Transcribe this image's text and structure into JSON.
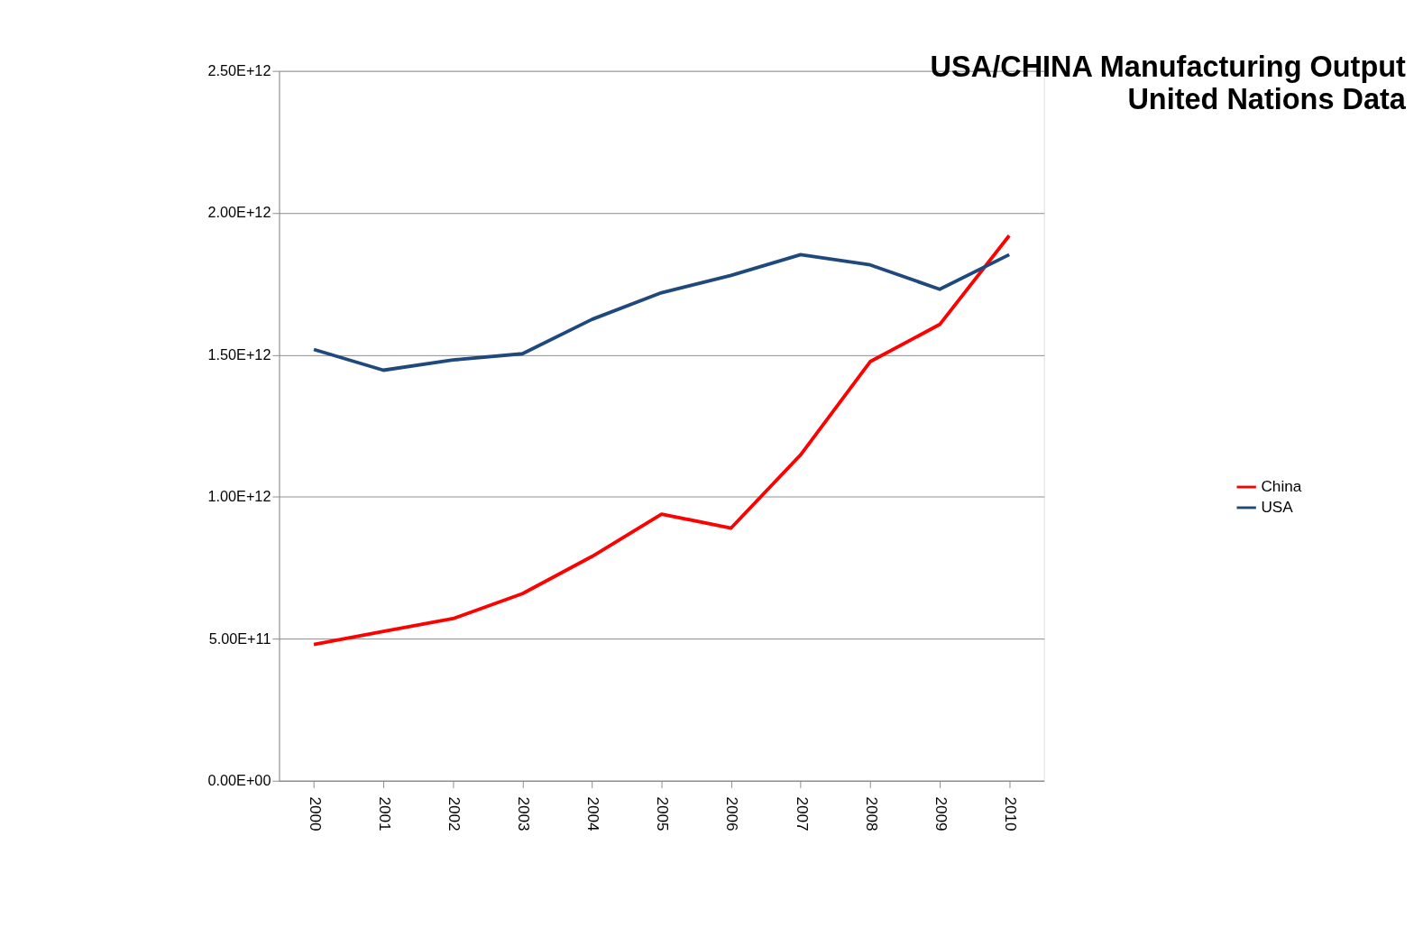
{
  "chart_data": {
    "type": "line",
    "title": "USA/CHINA Manufacturing Output",
    "subtitle": "United Nations Data",
    "categories": [
      "2000",
      "2001",
      "2002",
      "2003",
      "2004",
      "2005",
      "2006",
      "2007",
      "2008",
      "2009",
      "2010"
    ],
    "series": [
      {
        "name": "China",
        "color": "#ff0000",
        "values": [
          480000000000.0,
          526000000000.0,
          571000000000.0,
          659000000000.0,
          790000000000.0,
          939000000000.0,
          890000000000.0,
          1148000000000.0,
          1476000000000.0,
          1607000000000.0,
          1920000000000.0
        ]
      },
      {
        "name": "USA",
        "color": "#1f497d",
        "values": [
          1519000000000.0,
          1446000000000.0,
          1482000000000.0,
          1504000000000.0,
          1625000000000.0,
          1719000000000.0,
          1780000000000.0,
          1853000000000.0,
          1817000000000.0,
          1731000000000.0,
          1853000000000.0
        ]
      }
    ],
    "ylim": [
      0,
      2500000000000.0
    ],
    "yticks": [
      {
        "value": 0,
        "label": "0.00E+00"
      },
      {
        "value": 500000000000.0,
        "label": "5.00E+11"
      },
      {
        "value": 1000000000000.0,
        "label": "1.00E+12"
      },
      {
        "value": 1500000000000.0,
        "label": "1.50E+12"
      },
      {
        "value": 2000000000000.0,
        "label": "2.00E+12"
      },
      {
        "value": 2500000000000.0,
        "label": "2.50E+12"
      }
    ],
    "grid": "y",
    "legend": "right",
    "marker": "none",
    "line_style": "solid"
  }
}
